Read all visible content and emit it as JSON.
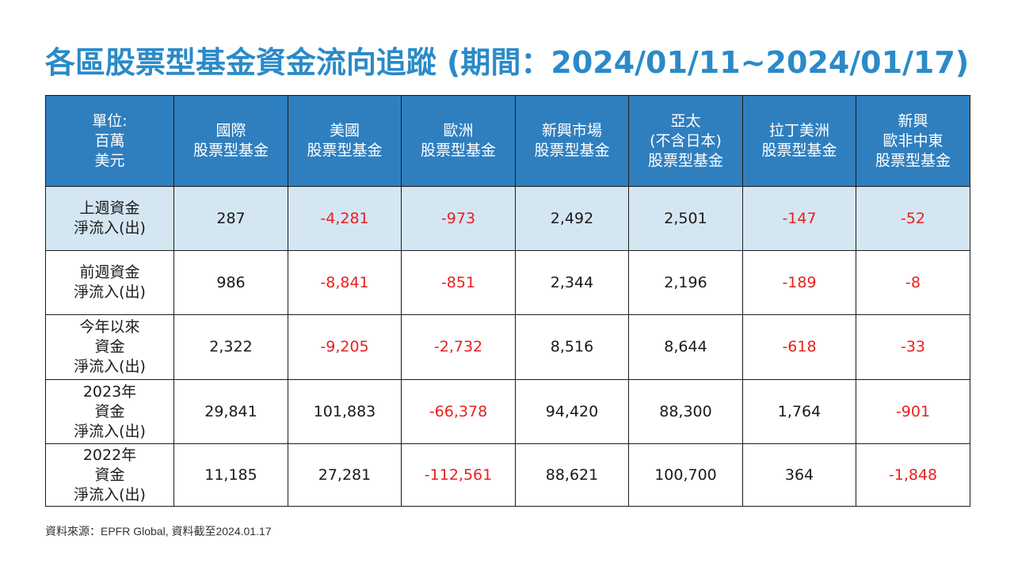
{
  "title": "各區股票型基金資金流向追蹤 (期間：2024/01/11~2024/01/17)",
  "colors": {
    "title": "#2a8ac9",
    "header_bg": "#2f7fbf",
    "highlight_row_bg": "#d5e6f3",
    "negative": "#e8201f"
  },
  "table": {
    "unit_header": [
      "單位:",
      "百萬",
      "美元"
    ],
    "columns": [
      [
        "國際",
        "股票型基金"
      ],
      [
        "美國",
        "股票型基金"
      ],
      [
        "歐洲",
        "股票型基金"
      ],
      [
        "新興市場",
        "股票型基金"
      ],
      [
        "亞太",
        "(不含日本)",
        "股票型基金"
      ],
      [
        "拉丁美洲",
        "股票型基金"
      ],
      [
        "新興",
        "歐非中東",
        "股票型基金"
      ]
    ],
    "rows": [
      {
        "label": [
          "上週資金",
          "淨流入(出)"
        ],
        "values": [
          "287",
          "-4,281",
          "-973",
          "2,492",
          "2,501",
          "-147",
          "-52"
        ]
      },
      {
        "label": [
          "前週資金",
          "淨流入(出)"
        ],
        "values": [
          "986",
          "-8,841",
          "-851",
          "2,344",
          "2,196",
          "-189",
          "-8"
        ]
      },
      {
        "label": [
          "今年以來",
          "資金",
          "淨流入(出)"
        ],
        "values": [
          "2,322",
          "-9,205",
          "-2,732",
          "8,516",
          "8,644",
          "-618",
          "-33"
        ]
      },
      {
        "label": [
          "2023年",
          "資金",
          "淨流入(出)"
        ],
        "values": [
          "29,841",
          "101,883",
          "-66,378",
          "94,420",
          "88,300",
          "1,764",
          "-901"
        ]
      },
      {
        "label": [
          "2022年",
          "資金",
          "淨流入(出)"
        ],
        "values": [
          "11,185",
          "27,281",
          "-112,561",
          "88,621",
          "100,700",
          "364",
          "-1,848"
        ]
      }
    ]
  },
  "source": "資料來源：EPFR Global, 資料截至2024.01.17"
}
